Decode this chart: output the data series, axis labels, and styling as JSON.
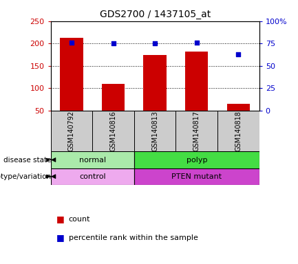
{
  "title": "GDS2700 / 1437105_at",
  "samples": [
    "GSM140792",
    "GSM140816",
    "GSM140813",
    "GSM140817",
    "GSM140818"
  ],
  "counts": [
    212,
    110,
    174,
    182,
    65
  ],
  "percentile_ranks": [
    76,
    75,
    75,
    76,
    63
  ],
  "ylim_left": [
    50,
    250
  ],
  "ylim_right": [
    0,
    100
  ],
  "yticks_left": [
    50,
    100,
    150,
    200,
    250
  ],
  "yticks_right": [
    0,
    25,
    50,
    75,
    100
  ],
  "bar_color": "#cc0000",
  "dot_color": "#0000cc",
  "disease_state_groups": [
    {
      "label": "normal",
      "start": 0,
      "end": 1,
      "color": "#aaeaaa"
    },
    {
      "label": "polyp",
      "start": 2,
      "end": 4,
      "color": "#44dd44"
    }
  ],
  "genotype_groups": [
    {
      "label": "control",
      "start": 0,
      "end": 1,
      "color": "#eeaaee"
    },
    {
      "label": "PTEN mutant",
      "start": 2,
      "end": 4,
      "color": "#cc44cc"
    }
  ],
  "label_disease_state": "disease state",
  "label_genotype": "genotype/variation",
  "legend_count": "count",
  "legend_percentile": "percentile rank within the sample",
  "tick_label_color_left": "#cc0000",
  "tick_label_color_right": "#0000cc",
  "sample_box_color": "#cccccc"
}
